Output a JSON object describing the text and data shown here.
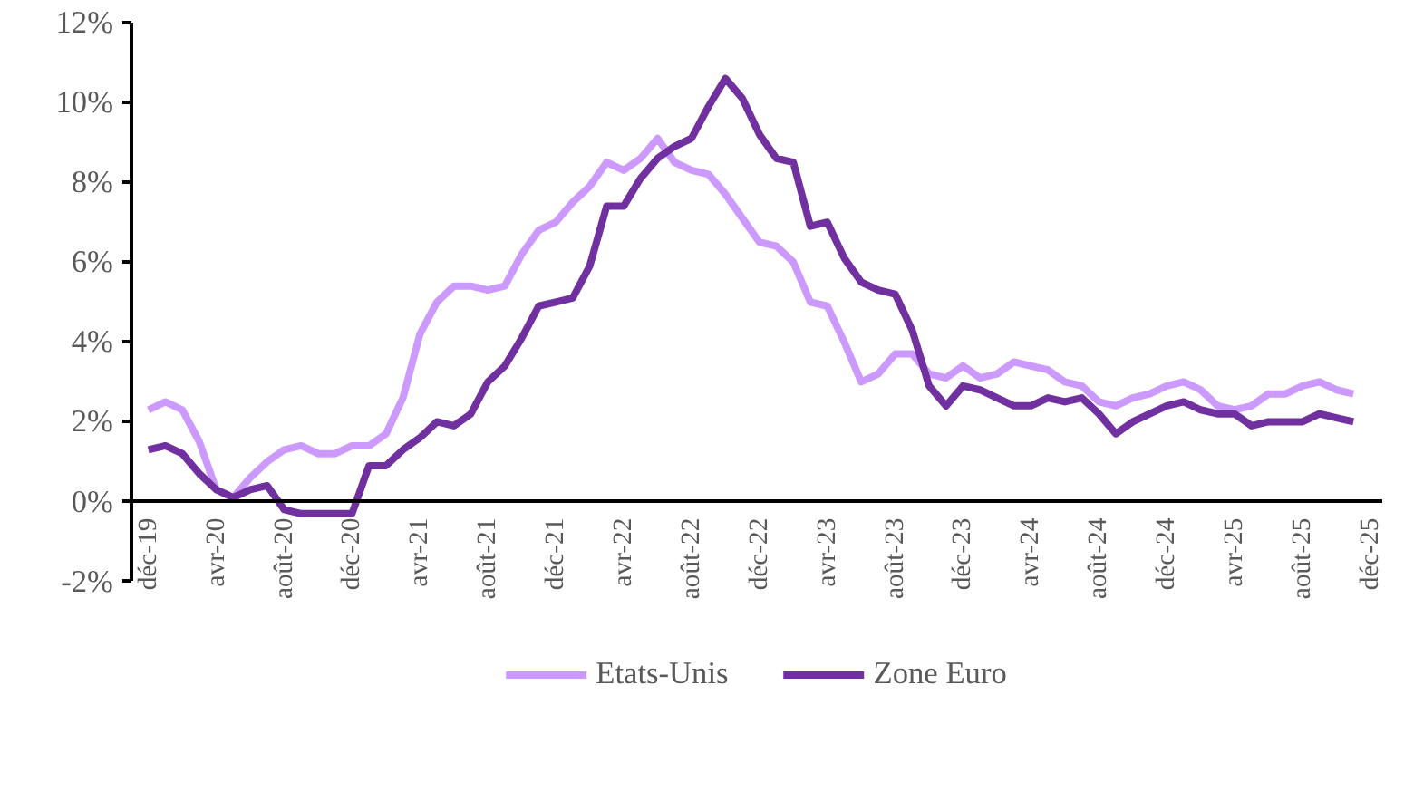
{
  "chart_data": {
    "type": "line",
    "categories": [
      "déc-19",
      null,
      null,
      null,
      "avr-20",
      null,
      null,
      null,
      "août-20",
      null,
      null,
      null,
      "déc-20",
      null,
      null,
      null,
      "avr-21",
      null,
      null,
      null,
      "août-21",
      null,
      null,
      null,
      "déc-21",
      null,
      null,
      null,
      "avr-22",
      null,
      null,
      null,
      "août-22",
      null,
      null,
      null,
      "déc-22",
      null,
      null,
      null,
      "avr-23",
      null,
      null,
      null,
      "août-23",
      null,
      null,
      null,
      "déc-23",
      null,
      null,
      null,
      "avr-24",
      null,
      null,
      null,
      "août-24",
      null,
      null,
      null,
      "déc-24",
      null,
      null,
      null,
      "avr-25",
      null,
      null,
      null,
      "août-25",
      null,
      null,
      null,
      "déc-25"
    ],
    "series": [
      {
        "name": "Etats-Unis",
        "color": "#cc99ff",
        "values": [
          2.3,
          2.5,
          2.3,
          1.5,
          0.3,
          0.1,
          0.6,
          1.0,
          1.3,
          1.4,
          1.2,
          1.2,
          1.4,
          1.4,
          1.7,
          2.6,
          4.2,
          5.0,
          5.4,
          5.4,
          5.3,
          5.4,
          6.2,
          6.8,
          7.0,
          7.5,
          7.9,
          8.5,
          8.3,
          8.6,
          9.1,
          8.5,
          8.3,
          8.2,
          7.7,
          7.1,
          6.5,
          6.4,
          6.0,
          5.0,
          4.9,
          4.0,
          3.0,
          3.2,
          3.7,
          3.7,
          3.2,
          3.1,
          3.4,
          3.1,
          3.2,
          3.5,
          3.4,
          3.3,
          3.0,
          2.9,
          2.5,
          2.4,
          2.6,
          2.7,
          2.9,
          3.0,
          2.8,
          2.4,
          2.3,
          2.4,
          2.7,
          2.7,
          2.9,
          3.0,
          2.8,
          2.7,
          null
        ]
      },
      {
        "name": "Zone Euro",
        "color": "#7030a0",
        "values": [
          1.3,
          1.4,
          1.2,
          0.7,
          0.3,
          0.1,
          0.3,
          0.4,
          -0.2,
          -0.3,
          -0.3,
          -0.3,
          -0.3,
          0.9,
          0.9,
          1.3,
          1.6,
          2.0,
          1.9,
          2.2,
          3.0,
          3.4,
          4.1,
          4.9,
          5.0,
          5.1,
          5.9,
          7.4,
          7.4,
          8.1,
          8.6,
          8.9,
          9.1,
          9.9,
          10.6,
          10.1,
          9.2,
          8.6,
          8.5,
          6.9,
          7.0,
          6.1,
          5.5,
          5.3,
          5.2,
          4.3,
          2.9,
          2.4,
          2.9,
          2.8,
          2.6,
          2.4,
          2.4,
          2.6,
          2.5,
          2.6,
          2.2,
          1.7,
          2.0,
          2.2,
          2.4,
          2.5,
          2.3,
          2.2,
          2.2,
          1.9,
          2.0,
          2.0,
          2.0,
          2.2,
          2.1,
          2.0,
          null
        ]
      }
    ],
    "ylim": [
      -2,
      12
    ],
    "yticks": [
      {
        "value": -2,
        "label": "-2%"
      },
      {
        "value": 0,
        "label": "0%"
      },
      {
        "value": 2,
        "label": "2%"
      },
      {
        "value": 4,
        "label": "4%"
      },
      {
        "value": 6,
        "label": "6%"
      },
      {
        "value": 8,
        "label": "8%"
      },
      {
        "value": 10,
        "label": "10%"
      },
      {
        "value": 12,
        "label": "12%"
      }
    ],
    "legend": "bottom",
    "marker": "none",
    "line_style": "solid"
  }
}
